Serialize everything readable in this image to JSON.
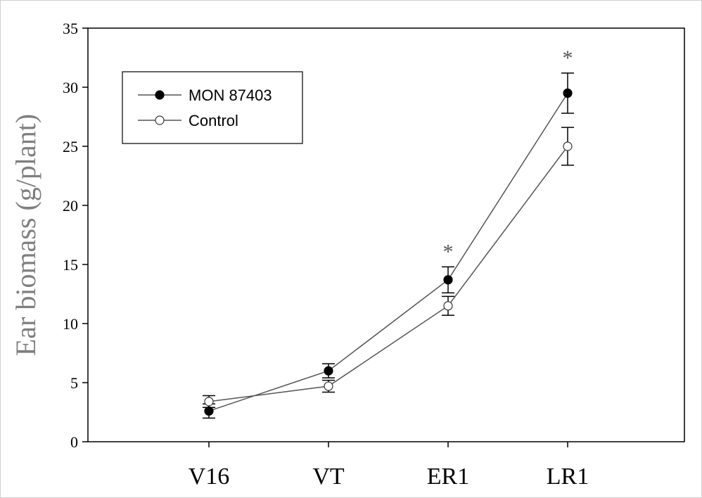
{
  "chart_data": {
    "type": "line",
    "categories": [
      "V16",
      "VT",
      "ER1",
      "LR1"
    ],
    "ylabel": "Ear biomass (g/plant)",
    "xlabel": "",
    "ylim": [
      0,
      35
    ],
    "yticks": [
      0,
      5,
      10,
      15,
      20,
      25,
      30,
      35
    ],
    "legend_position": "top-left",
    "grid": false,
    "series": [
      {
        "name": "MON 87403",
        "marker": "filled-circle",
        "values": [
          2.6,
          6.0,
          13.7,
          29.5
        ],
        "errors": [
          0.6,
          0.6,
          1.1,
          1.7
        ]
      },
      {
        "name": "Control",
        "marker": "open-circle",
        "values": [
          3.4,
          4.7,
          11.5,
          25.0
        ],
        "errors": [
          0.5,
          0.5,
          0.8,
          1.6
        ]
      }
    ],
    "annotations": [
      {
        "category": "ER1",
        "text": "*"
      },
      {
        "category": "LR1",
        "text": "*"
      }
    ]
  }
}
